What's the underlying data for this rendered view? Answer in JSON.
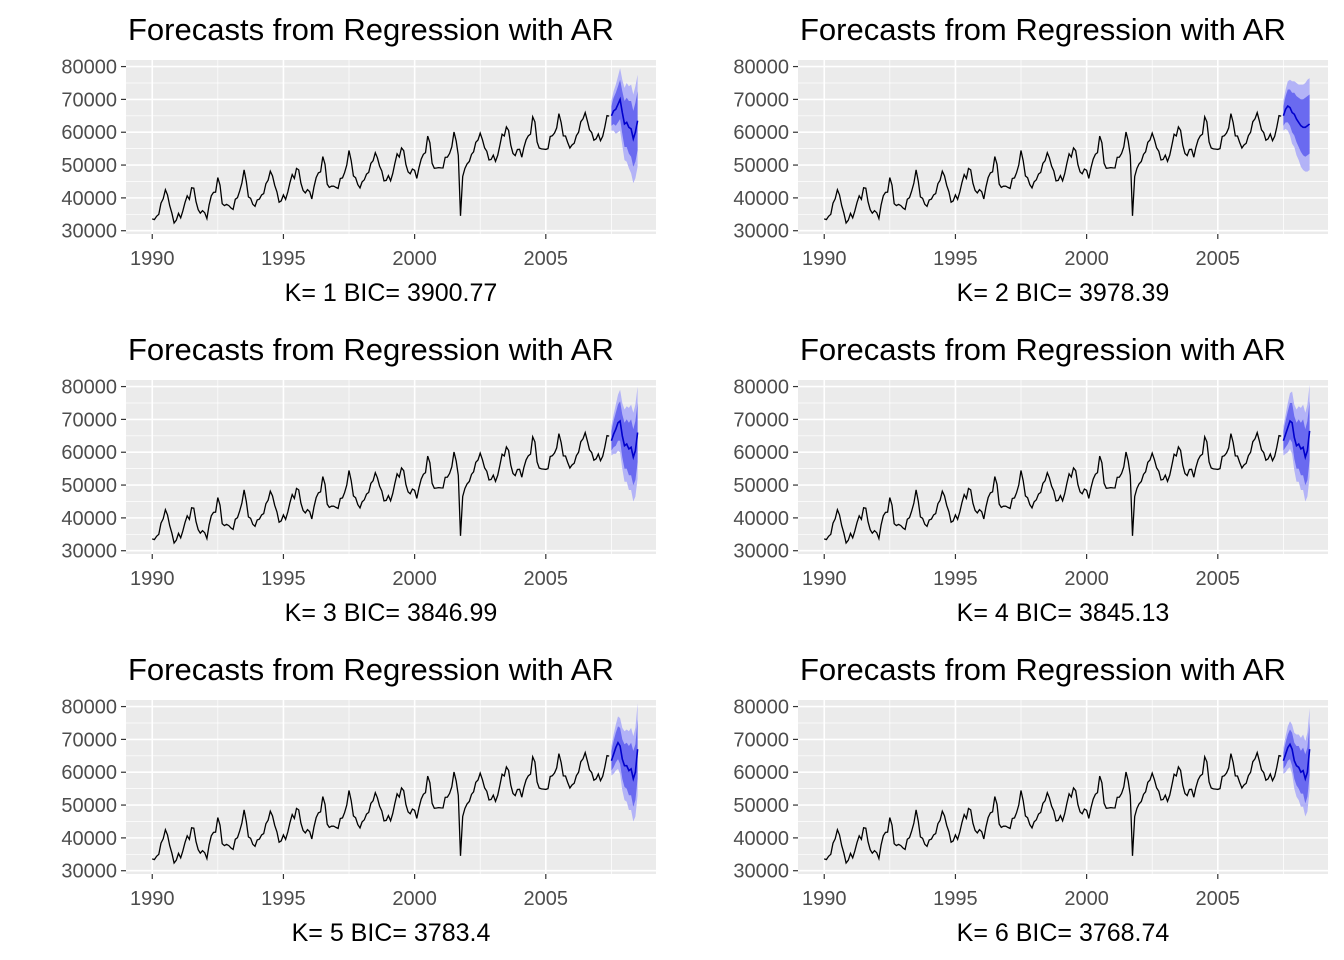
{
  "series_colors": {
    "history": "#000000",
    "forecast": "#0000cc",
    "band80": "#6a6af0",
    "band95": "#b3b3f7",
    "panel_bg": "#ebebeb",
    "grid": "#ffffff"
  },
  "chart_data": [
    {
      "type": "line",
      "title": "Forecasts from Regression with AR",
      "xlabel": "K= 1    BIC= 3900.77",
      "ylabel": "",
      "x_ticks": [
        1990,
        1995,
        2000,
        2005
      ],
      "y_ticks": [
        30000,
        40000,
        50000,
        60000,
        70000,
        80000
      ],
      "xlim": [
        1989,
        2009.2
      ],
      "ylim": [
        29000,
        82000
      ],
      "grid": true,
      "forecast": {
        "start": 2007.5,
        "step": 0.0833,
        "mean": [
          65000,
          66500,
          67000,
          68500,
          70000,
          66000,
          62500,
          63000,
          61500,
          61000,
          58000,
          60000,
          63500
        ],
        "lo80": [
          62000,
          62500,
          62000,
          63000,
          64000,
          59500,
          55500,
          55500,
          53500,
          52500,
          49500,
          51000,
          54500
        ],
        "hi80": [
          68000,
          70500,
          72000,
          74000,
          76000,
          72500,
          69500,
          70500,
          69500,
          69500,
          66500,
          69000,
          72500
        ],
        "lo95": [
          60500,
          60500,
          59500,
          60000,
          60500,
          56000,
          51500,
          51000,
          49000,
          47500,
          44500,
          46000,
          49500
        ],
        "hi95": [
          69500,
          72500,
          74500,
          77000,
          79500,
          76000,
          73500,
          75000,
          74000,
          74500,
          71500,
          74000,
          77500
        ]
      }
    },
    {
      "type": "line",
      "title": "Forecasts from Regression with AR",
      "xlabel": "K= 2    BIC= 3978.39",
      "ylabel": "",
      "x_ticks": [
        1990,
        1995,
        2000,
        2005
      ],
      "y_ticks": [
        30000,
        40000,
        50000,
        60000,
        70000,
        80000
      ],
      "xlim": [
        1989,
        2009.2
      ],
      "ylim": [
        29000,
        82000
      ],
      "grid": true,
      "forecast": {
        "start": 2007.5,
        "step": 0.0833,
        "mean": [
          65000,
          67000,
          68000,
          67500,
          66000,
          65500,
          64000,
          63000,
          62000,
          61500,
          61500,
          62000,
          62500
        ],
        "lo80": [
          62000,
          63000,
          63000,
          62000,
          60000,
          59000,
          57000,
          55500,
          54000,
          53000,
          52500,
          53000,
          53500
        ],
        "hi80": [
          68000,
          71000,
          73000,
          73000,
          72000,
          72000,
          71000,
          70500,
          70000,
          70000,
          70500,
          71000,
          71500
        ],
        "lo95": [
          60500,
          61000,
          60500,
          59000,
          56500,
          55500,
          53000,
          51500,
          49500,
          48500,
          48000,
          48000,
          48500
        ],
        "hi95": [
          69500,
          73000,
          75500,
          76000,
          75500,
          75500,
          75000,
          74500,
          74500,
          74500,
          75000,
          76000,
          76500
        ]
      }
    },
    {
      "type": "line",
      "title": "Forecasts from Regression with AR",
      "xlabel": "K= 3    BIC= 3846.99",
      "ylabel": "",
      "x_ticks": [
        1990,
        1995,
        2000,
        2005
      ],
      "y_ticks": [
        30000,
        40000,
        50000,
        60000,
        70000,
        80000
      ],
      "xlim": [
        1989,
        2009.2
      ],
      "ylim": [
        29000,
        82000
      ],
      "grid": true,
      "forecast": {
        "start": 2007.5,
        "step": 0.0833,
        "mean": [
          63500,
          65500,
          67000,
          69000,
          69500,
          65000,
          62000,
          62500,
          61000,
          61500,
          58500,
          60500,
          66000
        ],
        "lo80": [
          60500,
          61500,
          62000,
          63500,
          63500,
          58500,
          55000,
          55000,
          53000,
          53000,
          50000,
          51500,
          57000
        ],
        "hi80": [
          66500,
          69500,
          72000,
          74500,
          75500,
          71500,
          69000,
          70000,
          69000,
          70000,
          67000,
          69500,
          75000
        ],
        "lo95": [
          59000,
          59500,
          59500,
          60500,
          60000,
          55000,
          51000,
          51000,
          48500,
          48500,
          45000,
          46500,
          52000
        ],
        "hi95": [
          68000,
          71500,
          74500,
          77500,
          79000,
          75000,
          73000,
          74000,
          73500,
          74500,
          72000,
          74500,
          80000
        ]
      }
    },
    {
      "type": "line",
      "title": "Forecasts from Regression with AR",
      "xlabel": "K= 4    BIC= 3845.13",
      "ylabel": "",
      "x_ticks": [
        1990,
        1995,
        2000,
        2005
      ],
      "y_ticks": [
        30000,
        40000,
        50000,
        60000,
        70000,
        80000
      ],
      "xlim": [
        1989,
        2009.2
      ],
      "ylim": [
        29000,
        82000
      ],
      "grid": true,
      "forecast": {
        "start": 2007.5,
        "step": 0.0833,
        "mean": [
          63500,
          65500,
          67500,
          69500,
          69000,
          64500,
          62000,
          62500,
          61000,
          61500,
          58500,
          60500,
          66500
        ],
        "lo80": [
          60500,
          61500,
          62500,
          64000,
          63000,
          58000,
          55000,
          55000,
          53000,
          53000,
          50000,
          51500,
          57500
        ],
        "hi80": [
          66500,
          69500,
          72500,
          75000,
          75000,
          71000,
          69000,
          70000,
          69000,
          70000,
          67000,
          69500,
          75500
        ],
        "lo95": [
          59000,
          59500,
          60000,
          61000,
          59500,
          54500,
          51000,
          51000,
          48500,
          48500,
          45000,
          46500,
          52500
        ],
        "hi95": [
          68000,
          71500,
          75000,
          78000,
          78500,
          74500,
          73000,
          74000,
          73500,
          74500,
          72000,
          74500,
          80500
        ]
      }
    },
    {
      "type": "line",
      "title": "Forecasts from Regression with AR",
      "xlabel": "K= 5    BIC= 3783.4",
      "ylabel": "",
      "x_ticks": [
        1990,
        1995,
        2000,
        2005
      ],
      "y_ticks": [
        30000,
        40000,
        50000,
        60000,
        70000,
        80000
      ],
      "xlim": [
        1989,
        2009.2
      ],
      "ylim": [
        29000,
        82000
      ],
      "grid": true,
      "forecast": {
        "start": 2007.5,
        "step": 0.0833,
        "mean": [
          63500,
          65500,
          67500,
          69000,
          68000,
          64000,
          62000,
          62000,
          60500,
          61000,
          58000,
          60000,
          67000
        ],
        "lo80": [
          60500,
          61500,
          63000,
          64000,
          62500,
          58000,
          55500,
          55000,
          53000,
          53000,
          49500,
          51500,
          58000
        ],
        "hi80": [
          66500,
          69500,
          72000,
          74000,
          73500,
          70000,
          68500,
          69000,
          68000,
          69000,
          66500,
          68500,
          76000
        ],
        "lo95": [
          59000,
          59500,
          60500,
          61000,
          59500,
          54500,
          51500,
          51000,
          48500,
          48500,
          45000,
          46500,
          53000
        ],
        "hi95": [
          68000,
          71500,
          74500,
          77000,
          76500,
          73500,
          72500,
          73000,
          72500,
          73500,
          71000,
          73500,
          81000
        ]
      }
    },
    {
      "type": "line",
      "title": "Forecasts from Regression with AR",
      "xlabel": "K= 6    BIC= 3768.74",
      "ylabel": "",
      "x_ticks": [
        1990,
        1995,
        2000,
        2005
      ],
      "y_ticks": [
        30000,
        40000,
        50000,
        60000,
        70000,
        80000
      ],
      "xlim": [
        1989,
        2009.2
      ],
      "ylim": [
        29000,
        82000
      ],
      "grid": true,
      "forecast": {
        "start": 2007.5,
        "step": 0.0833,
        "mean": [
          63500,
          65500,
          67500,
          68500,
          67000,
          63500,
          62000,
          61500,
          60000,
          60500,
          58000,
          60000,
          67000
        ],
        "lo80": [
          61000,
          62000,
          63500,
          64000,
          62000,
          58000,
          56000,
          55000,
          53500,
          53500,
          50500,
          52500,
          59000
        ],
        "hi80": [
          66000,
          69000,
          71500,
          73000,
          72000,
          69000,
          68000,
          68000,
          66500,
          67500,
          65500,
          67500,
          75000
        ],
        "lo95": [
          59500,
          60000,
          61000,
          61500,
          59500,
          55000,
          52500,
          51500,
          49500,
          49500,
          46500,
          48000,
          54500
        ],
        "hi95": [
          67500,
          71000,
          74000,
          75500,
          74500,
          72000,
          71500,
          71500,
          70500,
          71500,
          69500,
          72000,
          79500
        ]
      }
    }
  ]
}
